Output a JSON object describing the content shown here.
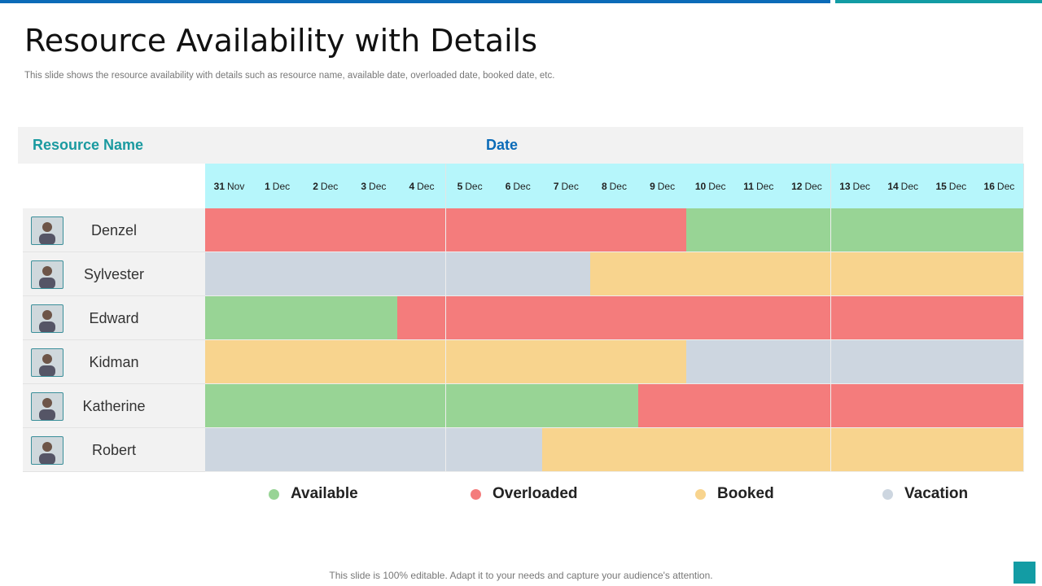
{
  "title": "Resource Availability with Details",
  "subtitle": "This slide shows the resource availability with details such as resource name, available date, overloaded date, booked date, etc.",
  "header": {
    "resource_name": "Resource Name",
    "date": "Date"
  },
  "dates": [
    [
      "31",
      "Nov"
    ],
    [
      "1",
      "Dec"
    ],
    [
      "2",
      "Dec"
    ],
    [
      "3",
      "Dec"
    ],
    [
      "4",
      "Dec"
    ],
    [
      "5",
      "Dec"
    ],
    [
      "6",
      "Dec"
    ],
    [
      "7",
      "Dec"
    ],
    [
      "8",
      "Dec"
    ],
    [
      "9",
      "Dec"
    ],
    [
      "10",
      "Dec"
    ],
    [
      "11",
      "Dec"
    ],
    [
      "12",
      "Dec"
    ],
    [
      "13",
      "Dec"
    ],
    [
      "14",
      "Dec"
    ],
    [
      "15",
      "Dec"
    ],
    [
      "16",
      "Dec"
    ]
  ],
  "colors": {
    "available": "#98d495",
    "overloaded": "#f47c7c",
    "booked": "#f8d48e",
    "vacation": "#cdd6e0"
  },
  "resources": [
    {
      "name": "Denzel",
      "status": [
        "overloaded",
        "overloaded",
        "overloaded",
        "overloaded",
        "overloaded",
        "overloaded",
        "overloaded",
        "overloaded",
        "overloaded",
        "overloaded",
        "available",
        "available",
        "available",
        "available",
        "available",
        "available",
        "available"
      ]
    },
    {
      "name": "Sylvester",
      "status": [
        "vacation",
        "vacation",
        "vacation",
        "vacation",
        "vacation",
        "vacation",
        "vacation",
        "vacation",
        "booked",
        "booked",
        "booked",
        "booked",
        "booked",
        "booked",
        "booked",
        "booked",
        "booked"
      ]
    },
    {
      "name": "Edward",
      "status": [
        "available",
        "available",
        "available",
        "available",
        "overloaded",
        "overloaded",
        "overloaded",
        "overloaded",
        "overloaded",
        "overloaded",
        "overloaded",
        "overloaded",
        "overloaded",
        "overloaded",
        "overloaded",
        "overloaded",
        "overloaded"
      ]
    },
    {
      "name": "Kidman",
      "status": [
        "booked",
        "booked",
        "booked",
        "booked",
        "booked",
        "booked",
        "booked",
        "booked",
        "booked",
        "booked",
        "vacation",
        "vacation",
        "vacation",
        "vacation",
        "vacation",
        "vacation",
        "vacation"
      ]
    },
    {
      "name": "Katherine",
      "status": [
        "available",
        "available",
        "available",
        "available",
        "available",
        "available",
        "available",
        "available",
        "available",
        "overloaded",
        "overloaded",
        "overloaded",
        "overloaded",
        "overloaded",
        "overloaded",
        "overloaded",
        "overloaded"
      ]
    },
    {
      "name": "Robert",
      "status": [
        "vacation",
        "vacation",
        "vacation",
        "vacation",
        "vacation",
        "vacation",
        "vacation",
        "booked",
        "booked",
        "booked",
        "booked",
        "booked",
        "booked",
        "booked",
        "booked",
        "booked",
        "booked"
      ]
    }
  ],
  "legend": [
    {
      "key": "available",
      "label": "Available"
    },
    {
      "key": "overloaded",
      "label": "Overloaded"
    },
    {
      "key": "booked",
      "label": "Booked"
    },
    {
      "key": "vacation",
      "label": "Vacation"
    }
  ],
  "footer": "This slide is 100% editable. Adapt it to your needs and capture your audience's attention."
}
